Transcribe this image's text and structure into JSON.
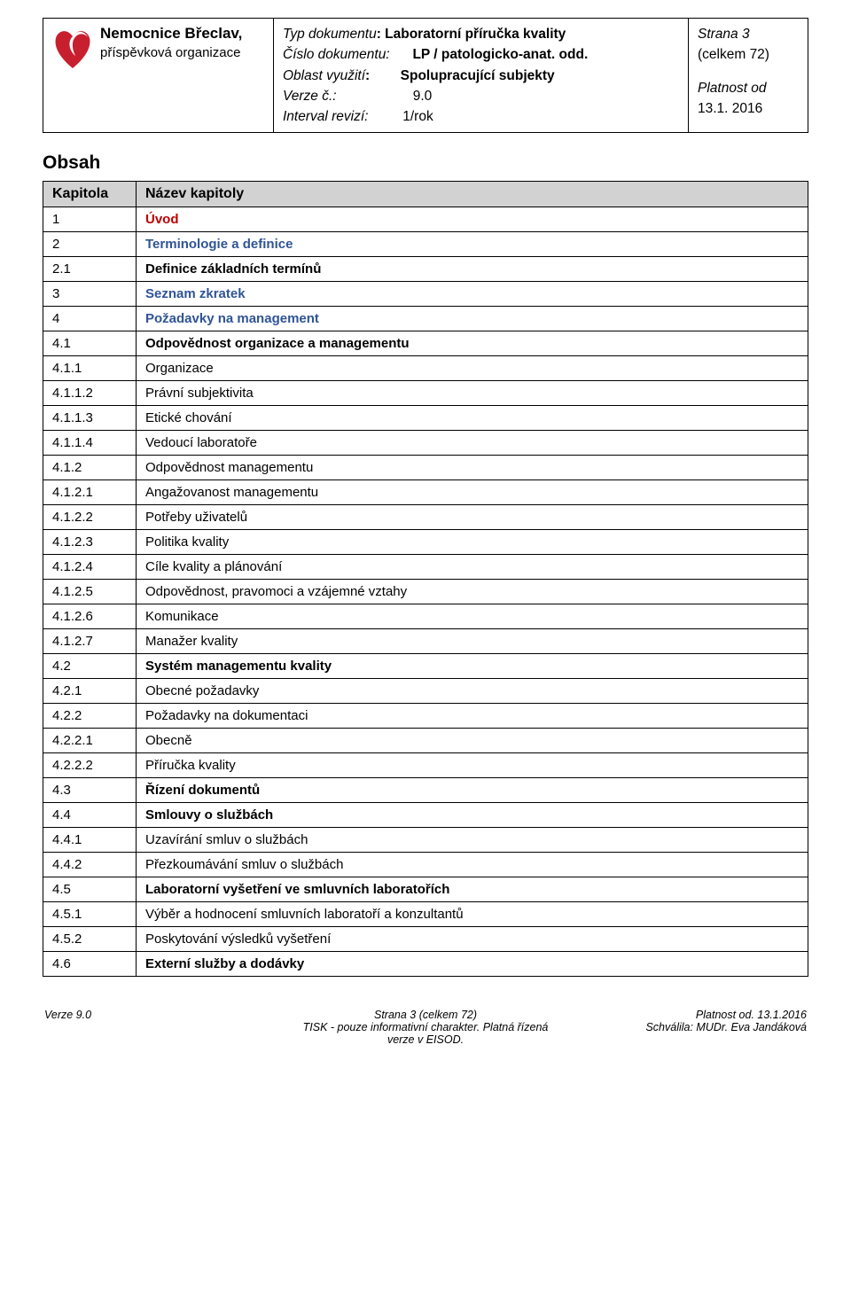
{
  "header": {
    "org_title": "Nemocnice Břeclav,",
    "org_sub": "příspěvková organizace",
    "doc": {
      "type_label": "Typ dokumentu",
      "type_value": "Laboratorní příručka kvality",
      "num_label": "Číslo dokumentu:",
      "num_value": "LP / patologicko-anat. odd.",
      "area_label": "Oblast využití",
      "area_value": "Spolupracující subjekty",
      "version_label": "Verze č.:",
      "version_value": "9.0",
      "interval_label": "Interval revizí:",
      "interval_value": "1/rok"
    },
    "right": {
      "page": "Strana 3",
      "total": "(celkem 72)",
      "valid_label": "Platnost od",
      "valid_date": "13.1. 2016"
    },
    "logo_fill": "#c81f2f"
  },
  "section_title": "Obsah",
  "toc_headers": {
    "kapitola": "Kapitola",
    "nazev": "Název kapitoly"
  },
  "toc": [
    {
      "n": "1",
      "t": "Úvod",
      "cls": "link-red"
    },
    {
      "n": "2",
      "t": "Terminologie a definice",
      "cls": "link-blue"
    },
    {
      "n": "2.1",
      "t": "Definice základních termínů",
      "cls": "tbold"
    },
    {
      "n": "3",
      "t": "Seznam zkratek",
      "cls": "link-blue"
    },
    {
      "n": "4",
      "t": "Požadavky na management",
      "cls": "link-blue"
    },
    {
      "n": "4.1",
      "t": "Odpovědnost organizace a managementu",
      "cls": "tbold"
    },
    {
      "n": "4.1.1",
      "t": "Organizace",
      "cls": ""
    },
    {
      "n": "4.1.1.2",
      "t": "Právní subjektivita",
      "cls": ""
    },
    {
      "n": "4.1.1.3",
      "t": "Etické chování",
      "cls": ""
    },
    {
      "n": "4.1.1.4",
      "t": "Vedoucí laboratoře",
      "cls": ""
    },
    {
      "n": "4.1.2",
      "t": "Odpovědnost managementu",
      "cls": ""
    },
    {
      "n": "4.1.2.1",
      "t": "Angažovanost managementu",
      "cls": ""
    },
    {
      "n": "4.1.2.2",
      "t": "Potřeby uživatelů",
      "cls": ""
    },
    {
      "n": "4.1.2.3",
      "t": "Politika kvality",
      "cls": ""
    },
    {
      "n": "4.1.2.4",
      "t": "Cíle kvality a plánování",
      "cls": ""
    },
    {
      "n": "4.1.2.5",
      "t": "Odpovědnost, pravomoci a vzájemné vztahy",
      "cls": ""
    },
    {
      "n": "4.1.2.6",
      "t": "Komunikace",
      "cls": ""
    },
    {
      "n": "4.1.2.7",
      "t": "Manažer kvality",
      "cls": ""
    },
    {
      "n": "4.2",
      "t": "Systém managementu kvality",
      "cls": "tbold"
    },
    {
      "n": "4.2.1",
      "t": "Obecné požadavky",
      "cls": ""
    },
    {
      "n": "4.2.2",
      "t": "Požadavky na dokumentaci",
      "cls": ""
    },
    {
      "n": "4.2.2.1",
      "t": "Obecně",
      "cls": ""
    },
    {
      "n": "4.2.2.2",
      "t": "Příručka kvality",
      "cls": ""
    },
    {
      "n": "4.3",
      "t": "Řízení dokumentů",
      "cls": "tbold"
    },
    {
      "n": "4.4",
      "t": "Smlouvy o službách",
      "cls": "tbold"
    },
    {
      "n": "4.4.1",
      "t": "Uzavírání smluv o službách",
      "cls": ""
    },
    {
      "n": "4.4.2",
      "t": "Přezkoumávání smluv o službách",
      "cls": ""
    },
    {
      "n": "4.5",
      "t": "Laboratorní vyšetření ve smluvních laboratořích",
      "cls": "tbold"
    },
    {
      "n": "4.5.1",
      "t": "Výběr a hodnocení smluvních laboratoří a konzultantů",
      "cls": ""
    },
    {
      "n": "4.5.2",
      "t": "Poskytování výsledků vyšetření",
      "cls": ""
    },
    {
      "n": "4.6",
      "t": "Externí služby a dodávky",
      "cls": "tbold"
    }
  ],
  "footer": {
    "l1": "Verze 9.0",
    "c1": "Strana 3 (celkem 72)",
    "r1": "Platnost od. 13.1.2016",
    "l2": "",
    "c2": "TISK - pouze informativní charakter. Platná řízená verze v EISOD.",
    "r2": "Schválila: MUDr. Eva Jandáková"
  }
}
